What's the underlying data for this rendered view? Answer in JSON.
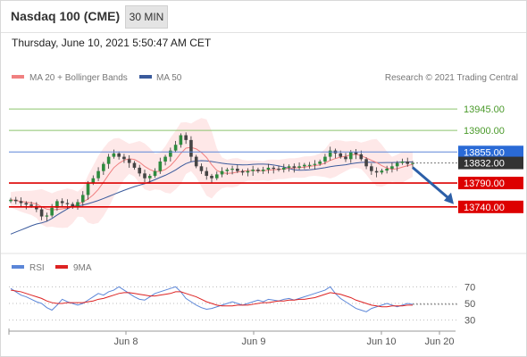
{
  "header": {
    "title": "Nasdaq 100 (CME)",
    "timeframe": "30 MIN"
  },
  "timestamp": "Thursday, June 10, 2021 5:50:47 AM CET",
  "legend": {
    "ma20": "MA 20 + Bollinger Bands",
    "ma50": "MA 50",
    "credit": "Research © 2021 Trading Central",
    "rsi": "RSI",
    "rsi_ma": "9MA"
  },
  "colors": {
    "ma20": "#f08080",
    "ma50": "#3a5a9c",
    "band": "#fde0e0",
    "bull": "#2e8b3e",
    "bear": "#444444",
    "green_line": "#8cc46e",
    "blue_line": "#5b86d8",
    "red_line": "#dd0000",
    "rsi": "#5b86d8",
    "rsi_ma": "#dd2222"
  },
  "chart_data": [
    {
      "type": "candlestick",
      "title": "Nasdaq 100 (CME)",
      "x_ticks": [
        "Jun 8",
        "Jun 9",
        "Jun 10",
        "Jun 20"
      ],
      "ylim": [
        13650,
        13990
      ],
      "price_levels": [
        {
          "label": "13945.00",
          "value": 13945,
          "kind": "resistance"
        },
        {
          "label": "13900.00",
          "value": 13900,
          "kind": "resistance"
        },
        {
          "label": "13855.00",
          "value": 13855,
          "kind": "pivot"
        },
        {
          "label": "13832.00",
          "value": 13832,
          "kind": "last"
        },
        {
          "label": "13790.00",
          "value": 13790,
          "kind": "support"
        },
        {
          "label": "13740.00",
          "value": 13740,
          "kind": "support"
        }
      ],
      "forecast_arrow": {
        "from": 13830,
        "to": 13742
      },
      "approx_close_path": [
        13755,
        13752,
        13748,
        13745,
        13742,
        13735,
        13720,
        13722,
        13738,
        13752,
        13748,
        13746,
        13740,
        13750,
        13765,
        13790,
        13800,
        13815,
        13830,
        13845,
        13852,
        13845,
        13840,
        13832,
        13822,
        13810,
        13800,
        13805,
        13815,
        13835,
        13845,
        13858,
        13870,
        13890,
        13880,
        13845,
        13825,
        13815,
        13805,
        13800,
        13808,
        13815,
        13818,
        13820,
        13815,
        13812,
        13815,
        13818,
        13815,
        13818,
        13822,
        13820,
        13818,
        13822,
        13825,
        13822,
        13825,
        13828,
        13828,
        13830,
        13835,
        13845,
        13858,
        13852,
        13845,
        13840,
        13855,
        13850,
        13840,
        13825,
        13815,
        13812,
        13816,
        13820,
        13825,
        13832,
        13835,
        13830,
        13832
      ],
      "ma20_label": "MA 20 + Bollinger Bands",
      "ma50_label": "MA 50"
    },
    {
      "type": "line",
      "series": [
        {
          "name": "RSI"
        },
        {
          "name": "9MA"
        }
      ],
      "y_ticks": [
        70,
        50,
        30
      ],
      "ylim": [
        20,
        80
      ],
      "rsi_values": [
        68,
        64,
        60,
        58,
        55,
        52,
        50,
        45,
        42,
        48,
        55,
        52,
        50,
        48,
        50,
        54,
        58,
        62,
        60,
        64,
        66,
        70,
        66,
        62,
        58,
        55,
        54,
        58,
        62,
        64,
        66,
        68,
        70,
        64,
        56,
        52,
        48,
        45,
        43,
        44,
        46,
        48,
        50,
        52,
        50,
        48,
        50,
        52,
        54,
        52,
        55,
        54,
        53,
        55,
        56,
        54,
        56,
        58,
        60,
        62,
        64,
        66,
        70,
        62,
        56,
        52,
        48,
        44,
        42,
        40,
        44,
        46,
        48,
        50,
        48,
        46,
        48,
        50,
        49
      ],
      "rsi_ma_values": [
        66,
        65,
        64,
        62,
        60,
        58,
        56,
        53,
        51,
        50,
        50,
        51,
        51,
        51,
        51,
        52,
        53,
        55,
        56,
        58,
        60,
        62,
        63,
        63,
        62,
        61,
        60,
        59,
        59,
        60,
        61,
        62,
        64,
        64,
        62,
        60,
        58,
        55,
        52,
        50,
        48,
        47,
        47,
        47,
        48,
        48,
        48,
        49,
        50,
        51,
        51,
        52,
        53,
        53,
        54,
        54,
        55,
        55,
        56,
        57,
        59,
        61,
        63,
        62,
        61,
        59,
        57,
        54,
        52,
        50,
        48,
        47,
        46,
        46,
        47,
        47,
        47,
        48,
        48
      ]
    }
  ]
}
